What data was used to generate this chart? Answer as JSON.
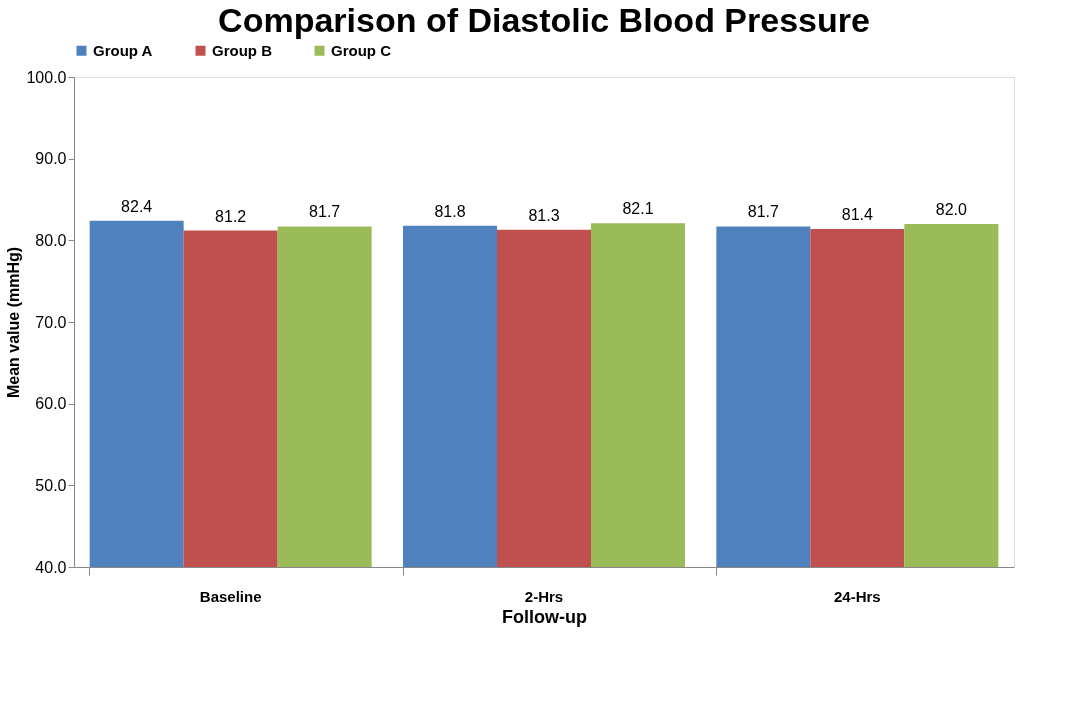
{
  "chart_data": {
    "type": "bar",
    "title": "Comparison of Diastolic Blood Pressure",
    "xlabel": "Follow-up",
    "ylabel": "Mean value (mmHg)",
    "categories": [
      "Baseline",
      "2-Hrs",
      "24-Hrs"
    ],
    "series": [
      {
        "name": "Group A",
        "color": "#4f81bd",
        "values": [
          82.4,
          81.8,
          81.7
        ],
        "value_labels": [
          "82.4",
          "81.8",
          "81.7"
        ]
      },
      {
        "name": "Group B",
        "color": "#c0504d",
        "values": [
          81.2,
          81.3,
          81.4
        ],
        "value_labels": [
          "81.2",
          "81.3",
          "81.4"
        ]
      },
      {
        "name": "Group C",
        "color": "#9bbb59",
        "values": [
          81.7,
          82.1,
          82.0
        ],
        "value_labels": [
          "81.7",
          "82.1",
          "82.0"
        ]
      }
    ],
    "ylim": [
      40,
      100
    ],
    "yticks": [
      {
        "value": 40,
        "label": "40.0"
      },
      {
        "value": 50,
        "label": "50.0"
      },
      {
        "value": 60,
        "label": "60.0"
      },
      {
        "value": 70,
        "label": "70.0"
      },
      {
        "value": 80,
        "label": "80.0"
      },
      {
        "value": 90,
        "label": "90.0"
      },
      {
        "value": 100,
        "label": "100.0"
      }
    ],
    "legend": "top",
    "grid": false
  }
}
